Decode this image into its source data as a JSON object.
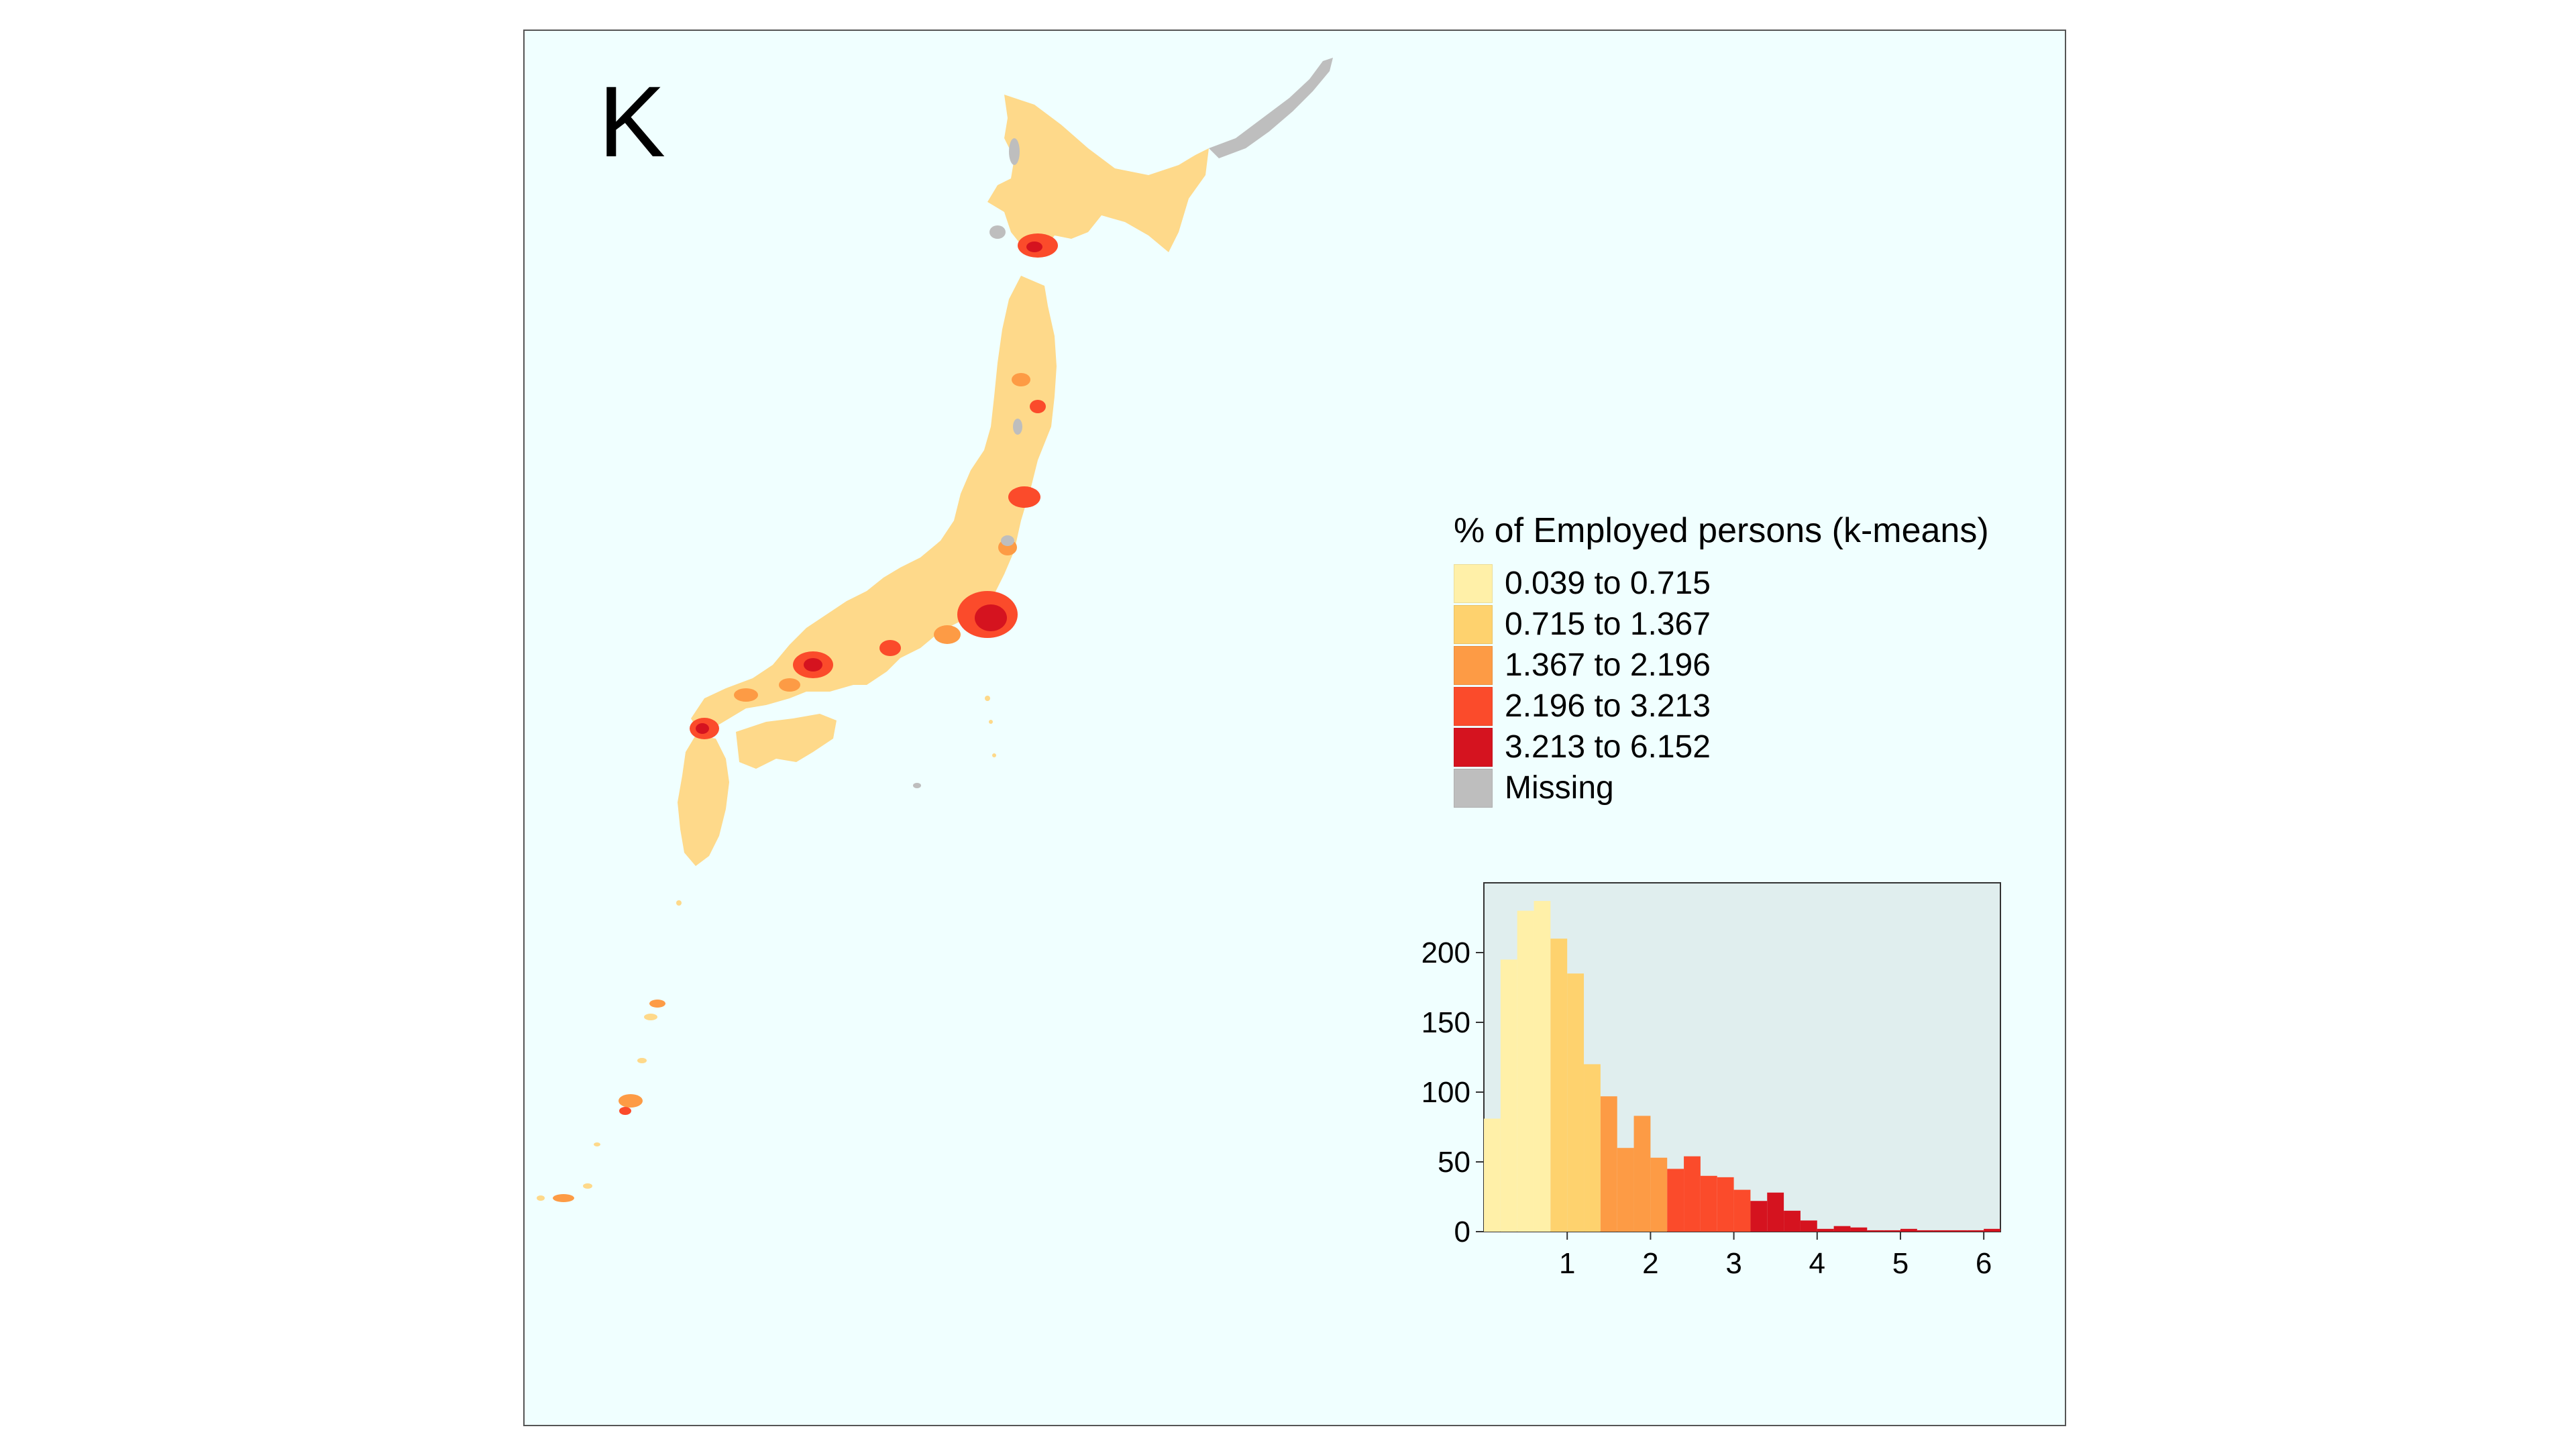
{
  "panel": {
    "letter": "K"
  },
  "legend": {
    "title": "% of Employed persons (k-means)",
    "items": [
      {
        "label": "0.039 to 0.715",
        "color": "#fff0a8"
      },
      {
        "label": "0.715 to 1.367",
        "color": "#fed26e"
      },
      {
        "label": "1.367 to 2.196",
        "color": "#fd9b45"
      },
      {
        "label": "2.196 to 3.213",
        "color": "#fb4b2b"
      },
      {
        "label": "3.213 to 6.152",
        "color": "#d5131f"
      },
      {
        "label": "Missing",
        "color": "#bebebe"
      }
    ]
  },
  "colors": {
    "ocean": "#f0ffff",
    "hist_background": "#e0eeee",
    "land_base": "#fed98a"
  },
  "chart_data": {
    "type": "bar",
    "title": "",
    "xlabel": "",
    "ylabel": "",
    "xlim": [
      0,
      6.2
    ],
    "ylim": [
      0,
      250
    ],
    "xticks": [
      "1",
      "2",
      "3",
      "4",
      "5",
      "6"
    ],
    "yticks": [
      "0",
      "50",
      "100",
      "150",
      "200"
    ],
    "bin_width": 0.2,
    "bins": [
      {
        "x0": 0.0,
        "count": 81,
        "class": 0
      },
      {
        "x0": 0.2,
        "count": 195,
        "class": 0
      },
      {
        "x0": 0.4,
        "count": 230,
        "class": 0
      },
      {
        "x0": 0.6,
        "count": 237,
        "class": 0
      },
      {
        "x0": 0.8,
        "count": 210,
        "class": 1
      },
      {
        "x0": 1.0,
        "count": 185,
        "class": 1
      },
      {
        "x0": 1.2,
        "count": 120,
        "class": 1
      },
      {
        "x0": 1.4,
        "count": 97,
        "class": 2
      },
      {
        "x0": 1.6,
        "count": 60,
        "class": 2
      },
      {
        "x0": 1.8,
        "count": 83,
        "class": 2
      },
      {
        "x0": 2.0,
        "count": 53,
        "class": 2
      },
      {
        "x0": 2.2,
        "count": 45,
        "class": 3
      },
      {
        "x0": 2.4,
        "count": 54,
        "class": 3
      },
      {
        "x0": 2.6,
        "count": 40,
        "class": 3
      },
      {
        "x0": 2.8,
        "count": 39,
        "class": 3
      },
      {
        "x0": 3.0,
        "count": 30,
        "class": 3
      },
      {
        "x0": 3.2,
        "count": 22,
        "class": 4
      },
      {
        "x0": 3.4,
        "count": 28,
        "class": 4
      },
      {
        "x0": 3.6,
        "count": 15,
        "class": 4
      },
      {
        "x0": 3.8,
        "count": 8,
        "class": 4
      },
      {
        "x0": 4.0,
        "count": 2,
        "class": 4
      },
      {
        "x0": 4.2,
        "count": 4,
        "class": 4
      },
      {
        "x0": 4.4,
        "count": 3,
        "class": 4
      },
      {
        "x0": 4.6,
        "count": 1,
        "class": 4
      },
      {
        "x0": 4.8,
        "count": 1,
        "class": 4
      },
      {
        "x0": 5.0,
        "count": 2,
        "class": 4
      },
      {
        "x0": 5.2,
        "count": 1,
        "class": 4
      },
      {
        "x0": 5.4,
        "count": 1,
        "class": 4
      },
      {
        "x0": 5.6,
        "count": 1,
        "class": 4
      },
      {
        "x0": 5.8,
        "count": 1,
        "class": 4
      },
      {
        "x0": 6.0,
        "count": 2,
        "class": 4
      }
    ]
  }
}
